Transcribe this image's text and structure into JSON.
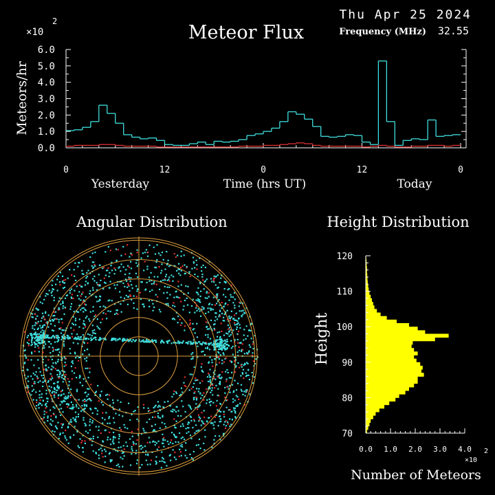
{
  "header": {
    "date": "Thu Apr 25 2024",
    "title": "Meteor Flux",
    "frequency_label": "Frequency (MHz)",
    "frequency_value": "32.55",
    "multiplier": "×10",
    "multiplier_exp": "2"
  },
  "colors": {
    "background": "#000000",
    "axis": "#ffffff",
    "flux_total": "#40e0e0",
    "flux_secondary": "#e03030",
    "rings": "#e0a040",
    "dots_cyan": "#40e0e0",
    "dots_red": "#e03030",
    "histogram": "#ffff00"
  },
  "chart_data": [
    {
      "type": "line",
      "name": "meteor-flux",
      "title": "Meteor Flux",
      "ylabel": "Meteors/hr",
      "xlabel": "Time (hrs UT)",
      "y_multiplier": "×10",
      "y_multiplier_exp": "2",
      "ylim": [
        0,
        6
      ],
      "y_ticks": [
        "0.0",
        "1.0",
        "2.0",
        "3.0",
        "4.0",
        "5.0",
        "6.0"
      ],
      "x_ticks": [
        "0",
        "12",
        "0",
        "12",
        "0"
      ],
      "x_range_hours": [
        0,
        48
      ],
      "day_labels": [
        "Yesterday",
        "Today"
      ],
      "series": [
        {
          "color": "#40e0e0",
          "step": true,
          "x": [
            0,
            1,
            2,
            3,
            4,
            5,
            6,
            7,
            8,
            9,
            10,
            11,
            12,
            13,
            14,
            15,
            16,
            17,
            18,
            19,
            20,
            21,
            22,
            23,
            24,
            25,
            26,
            27,
            28,
            29,
            30,
            31,
            32,
            33,
            34,
            35,
            36,
            37,
            38,
            39,
            40,
            41,
            42,
            43,
            44,
            45,
            46,
            47
          ],
          "values": [
            1.05,
            1.1,
            1.25,
            1.6,
            2.6,
            2.1,
            1.5,
            0.8,
            0.65,
            0.55,
            0.6,
            0.45,
            0.2,
            0.15,
            0.15,
            0.25,
            0.35,
            0.2,
            0.4,
            0.35,
            0.4,
            0.5,
            0.75,
            0.85,
            1.0,
            1.2,
            1.6,
            2.2,
            2.05,
            1.75,
            1.3,
            0.7,
            0.65,
            0.7,
            0.8,
            0.75,
            0.35,
            0.2,
            5.3,
            1.6,
            0.15,
            0.45,
            0.55,
            0.5,
            1.7,
            0.7,
            0.75,
            0.8
          ]
        },
        {
          "color": "#e03030",
          "step": true,
          "x": [
            0,
            1,
            2,
            3,
            4,
            5,
            6,
            7,
            8,
            9,
            10,
            11,
            12,
            13,
            14,
            15,
            16,
            17,
            18,
            19,
            20,
            21,
            22,
            23,
            24,
            25,
            26,
            27,
            28,
            29,
            30,
            31,
            32,
            33,
            34,
            35,
            36,
            37,
            38,
            39,
            40,
            41,
            42,
            43,
            44,
            45,
            46,
            47
          ],
          "values": [
            0.1,
            0.15,
            0.15,
            0.15,
            0.2,
            0.2,
            0.15,
            0.1,
            0.1,
            0.1,
            0.1,
            0.05,
            0.05,
            0.05,
            0.05,
            0.05,
            0.05,
            0.05,
            0.05,
            0.05,
            0.05,
            0.1,
            0.1,
            0.1,
            0.15,
            0.15,
            0.2,
            0.25,
            0.3,
            0.25,
            0.15,
            0.1,
            0.1,
            0.1,
            0.1,
            0.1,
            0.05,
            0.1,
            0.15,
            0.1,
            0.05,
            0.05,
            0.1,
            0.1,
            0.15,
            0.15,
            0.1,
            0.15
          ]
        }
      ]
    },
    {
      "type": "scatter",
      "name": "angular-distribution",
      "title": "Angular Distribution",
      "polar": true,
      "rings": 6,
      "series_colors": [
        "#40e0e0",
        "#e03030"
      ]
    },
    {
      "type": "bar",
      "name": "height-distribution",
      "title": "Height Distribution",
      "orientation": "horizontal",
      "ylabel": "Height",
      "xlabel": "Number of Meteors",
      "x_multiplier": "×10",
      "x_multiplier_exp": "2",
      "xlim": [
        0,
        4
      ],
      "x_ticks": [
        "0.0",
        "1.0",
        "2.0",
        "3.0",
        "4.0"
      ],
      "ylim": [
        70,
        120
      ],
      "y_ticks": [
        "70",
        "80",
        "90",
        "100",
        "110",
        "120"
      ],
      "heights": [
        70,
        71,
        72,
        73,
        74,
        75,
        76,
        77,
        78,
        79,
        80,
        81,
        82,
        83,
        84,
        85,
        86,
        87,
        88,
        89,
        90,
        91,
        92,
        93,
        94,
        95,
        96,
        97,
        98,
        99,
        100,
        101,
        102,
        103,
        104,
        105,
        106,
        107,
        108,
        109,
        110,
        111,
        112,
        113,
        114,
        115,
        116,
        117,
        118,
        119
      ],
      "values": [
        0.05,
        0.1,
        0.15,
        0.2,
        0.3,
        0.4,
        0.55,
        0.75,
        0.95,
        1.2,
        1.35,
        1.6,
        1.75,
        1.95,
        2.1,
        2.1,
        2.35,
        2.25,
        2.3,
        2.2,
        2.05,
        1.95,
        2.1,
        1.95,
        1.85,
        1.9,
        2.8,
        3.35,
        2.4,
        2.1,
        1.75,
        1.25,
        0.85,
        0.6,
        0.45,
        0.35,
        0.3,
        0.25,
        0.2,
        0.15,
        0.12,
        0.1,
        0.08,
        0.07,
        0.06,
        0.05,
        0.05,
        0.04,
        0.03,
        0.02
      ]
    }
  ]
}
